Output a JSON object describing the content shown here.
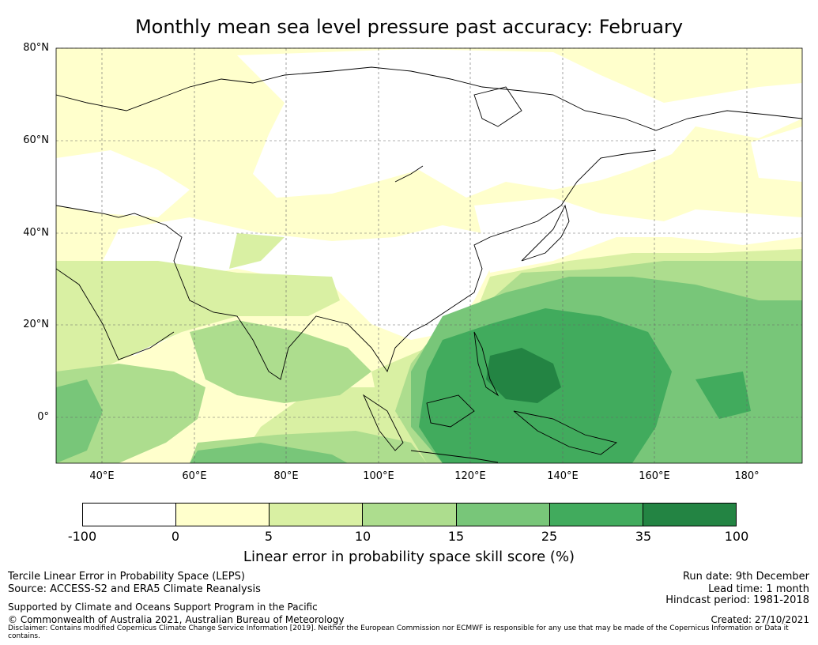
{
  "title": "Monthly mean sea level pressure past accuracy: February",
  "map": {
    "lat_labels": [
      "80°N",
      "60°N",
      "40°N",
      "20°N",
      "0°"
    ],
    "lon_labels": [
      "40°E",
      "60°E",
      "80°E",
      "100°E",
      "120°E",
      "140°E",
      "160°E",
      "180°"
    ],
    "extent": {
      "lon_min": 30,
      "lon_max": 192,
      "lat_min": -10,
      "lat_max": 80
    }
  },
  "colorbar": {
    "tick_labels": [
      "-100",
      "0",
      "5",
      "10",
      "15",
      "25",
      "35",
      "100"
    ],
    "colors": [
      "#ffffff",
      "#ffffcc",
      "#d9f0a3",
      "#addd8e",
      "#78c679",
      "#41ab5d",
      "#238443"
    ],
    "label": "Linear error in probability space skill score (%)"
  },
  "footer": {
    "left": {
      "line1": "Tercile Linear Error in Probability Space (LEPS)",
      "line2": "Source: ACCESS-S2 and ERA5 Climate Reanalysis",
      "line3": "Supported by Climate and Oceans Support Program in the Pacific",
      "line4": "© Commonwealth of Australia 2021, Australian Bureau of Meteorology"
    },
    "right": {
      "run_date": "Run date: 9th December",
      "lead_time": "Lead time: 1 month",
      "hindcast": "Hindcast period: 1981-2018",
      "created": "Created: 27/10/2021"
    },
    "disclaimer": "Disclaimer: Contains modified Copernicus Climate Change Service Information [2019]. Neither the European Commission nor ECMWF is responsible for any use that may be made of the Copernicus Information or Data it contains."
  }
}
